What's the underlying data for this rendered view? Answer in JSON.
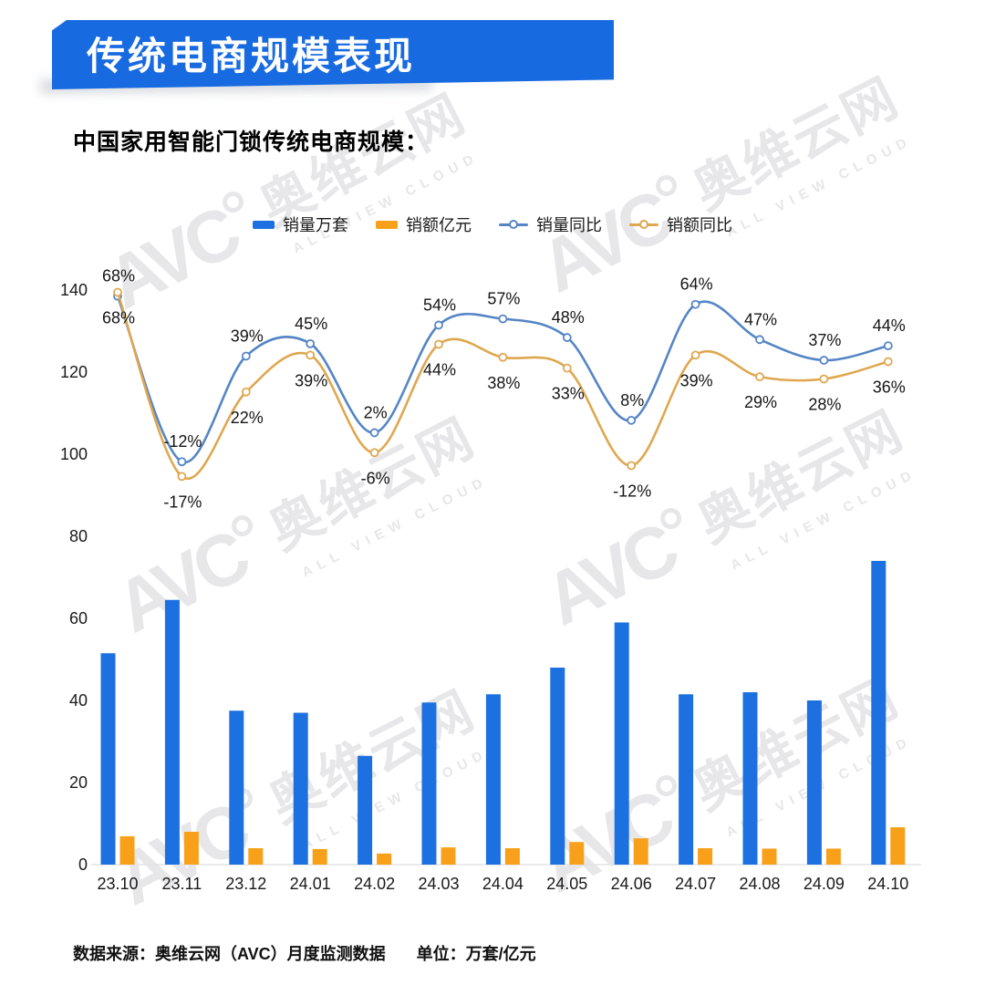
{
  "header": {
    "title": "传统电商规模表现"
  },
  "subtitle": "中国家用智能门锁传统电商规模：",
  "legend": {
    "position": "top",
    "items": [
      {
        "label": "销量万套",
        "type": "bar",
        "color": "#1C70E0"
      },
      {
        "label": "销额亿元",
        "type": "bar",
        "color": "#F8A01A"
      },
      {
        "label": "销量同比",
        "type": "line",
        "color": "#5585C5"
      },
      {
        "label": "销额同比",
        "type": "line",
        "color": "#DFA750"
      }
    ]
  },
  "chart_data": {
    "type": "bar+line",
    "title": "中国家用智能门锁传统电商规模",
    "categories": [
      "23.10",
      "23.11",
      "23.12",
      "24.01",
      "24.02",
      "24.03",
      "24.04",
      "24.05",
      "24.06",
      "24.07",
      "24.08",
      "24.09",
      "24.10"
    ],
    "bar_series": [
      {
        "name": "销量万套",
        "color": "#1C70E0",
        "values": [
          51.5,
          64.5,
          37.5,
          37,
          26.5,
          39.5,
          41.5,
          48,
          59,
          41.5,
          42,
          40,
          74
        ]
      },
      {
        "name": "销额亿元",
        "color": "#F8A01A",
        "values": [
          6.9,
          8,
          4,
          3.8,
          2.7,
          4.2,
          4,
          5.5,
          6.4,
          4,
          3.9,
          3.9,
          9.1
        ]
      }
    ],
    "line_series": [
      {
        "name": "销量同比",
        "color": "#5585C5",
        "values_pct": [
          68,
          -12,
          39,
          45,
          2,
          54,
          57,
          48,
          8,
          64,
          47,
          37,
          44
        ],
        "labels": [
          "68%",
          "-12%",
          "39%",
          "45%",
          "2%",
          "54%",
          "57%",
          "48%",
          "8%",
          "64%",
          "47%",
          "37%",
          "44%"
        ]
      },
      {
        "name": "销额同比",
        "color": "#DFA750",
        "values_pct": [
          68,
          -17,
          22,
          39,
          -6,
          44,
          38,
          33,
          -12,
          39,
          29,
          28,
          36
        ],
        "labels": [
          "68%",
          "-17%",
          "22%",
          "39%",
          "-6%",
          "44%",
          "38%",
          "33%",
          "-12%",
          "39%",
          "29%",
          "28%",
          "36%"
        ]
      }
    ],
    "y_axis": {
      "ticks": [
        0,
        20,
        40,
        60,
        80,
        100,
        120,
        140
      ],
      "range": [
        0,
        140
      ]
    },
    "grid": false,
    "legend_position": "top",
    "unit_note": "万套/亿元"
  },
  "footer": {
    "source": "数据来源：奥维云网（AVC）月度监测数据",
    "unit": "单位：万套/亿元"
  },
  "watermark": {
    "logo": "AVC",
    "cn": "奥维云网",
    "en": "ALL VIEW CLOUD"
  },
  "colors": {
    "banner": "#176AE0",
    "axis_line": "#E3E3E3",
    "text": "#1A1A1A",
    "watermark": "#E7E7E9"
  }
}
